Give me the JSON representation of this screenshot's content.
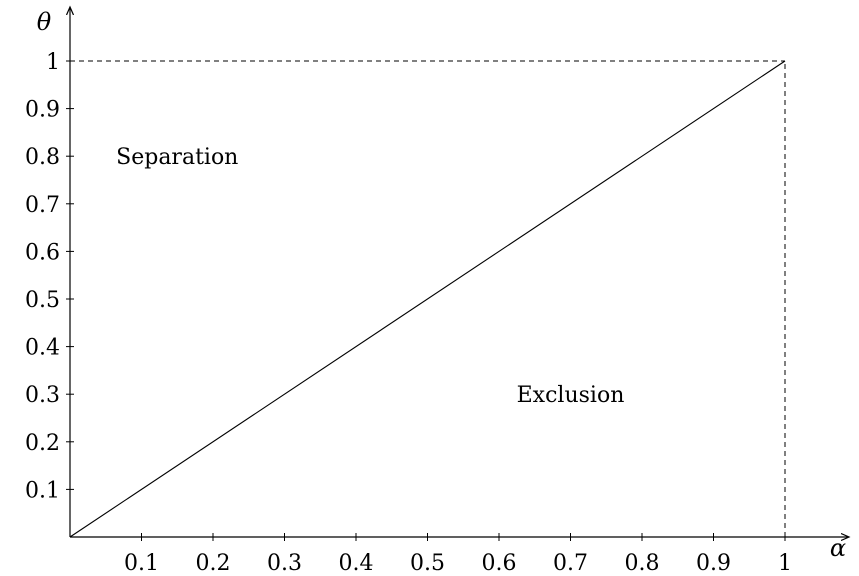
{
  "chart_data": {
    "type": "line",
    "title": "",
    "xlabel": "α",
    "ylabel": "θ",
    "xlim": [
      0,
      1
    ],
    "ylim": [
      0,
      1
    ],
    "grid": false,
    "x_ticks": [
      "0.1",
      "0.2",
      "0.3",
      "0.4",
      "0.5",
      "0.6",
      "0.7",
      "0.8",
      "0.9",
      "1"
    ],
    "y_ticks": [
      "0.1",
      "0.2",
      "0.3",
      "0.4",
      "0.5",
      "0.6",
      "0.7",
      "0.8",
      "0.9",
      "1"
    ],
    "series": [
      {
        "style": "solid",
        "x": [
          0,
          1
        ],
        "y": [
          0,
          1
        ]
      }
    ],
    "guides": [
      {
        "style": "dashed",
        "x": [
          0,
          1
        ],
        "y": [
          1,
          1
        ]
      },
      {
        "style": "dashed",
        "x": [
          1,
          1
        ],
        "y": [
          0,
          1
        ]
      }
    ],
    "annotations": [
      {
        "text": "Separation",
        "x": 0.15,
        "y": 0.8
      },
      {
        "text": "Exclusion",
        "x": 0.7,
        "y": 0.3
      }
    ]
  }
}
